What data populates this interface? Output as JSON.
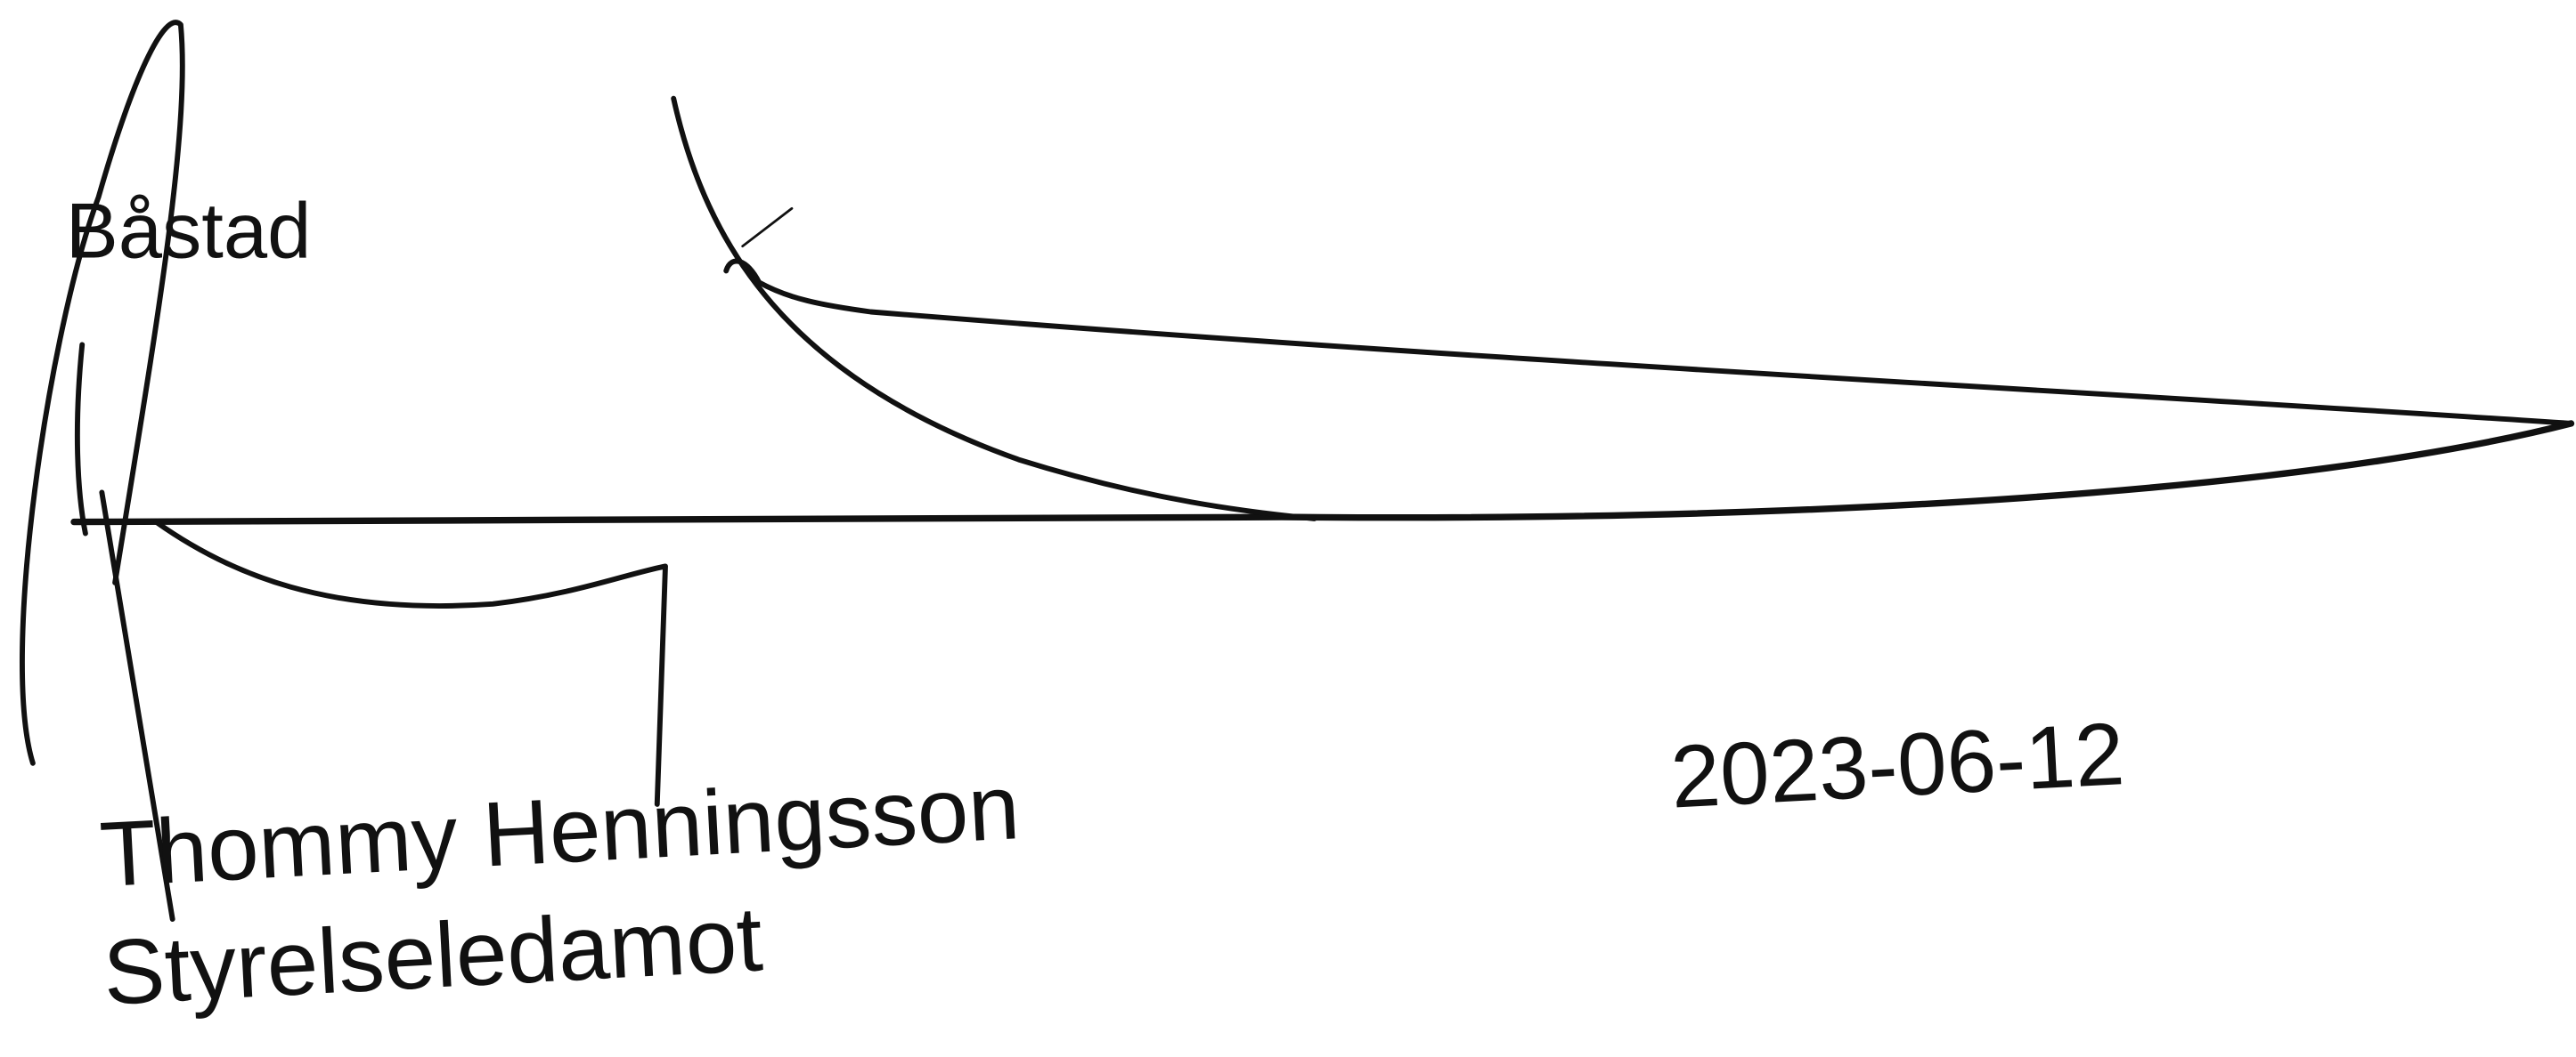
{
  "place": "Båstad",
  "date": "2023-06-12",
  "signatory": {
    "name": "Thommy Henningsson",
    "role": "Styrelseledamot"
  }
}
